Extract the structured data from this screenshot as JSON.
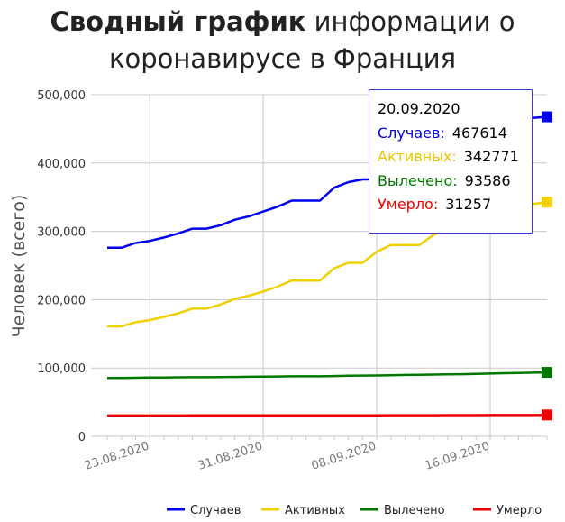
{
  "title": {
    "bold": "Сводный график",
    "line1_rest": " информации о",
    "line2": "коронавирусе в Франция"
  },
  "chart_data": {
    "type": "line",
    "ylabel": "Человек (всего)",
    "xlabel": "",
    "ylim": [
      0,
      500000
    ],
    "yticks": [
      "0",
      "100,000",
      "200,000",
      "300,000",
      "400,000",
      "500,000"
    ],
    "xticks": [
      "23.08.2020",
      "31.08.2020",
      "08.09.2020",
      "16.09.2020"
    ],
    "x": [
      "20.08.2020",
      "21.08.2020",
      "22.08.2020",
      "23.08.2020",
      "24.08.2020",
      "25.08.2020",
      "26.08.2020",
      "27.08.2020",
      "28.08.2020",
      "29.08.2020",
      "30.08.2020",
      "31.08.2020",
      "01.09.2020",
      "02.09.2020",
      "03.09.2020",
      "04.09.2020",
      "05.09.2020",
      "06.09.2020",
      "07.09.2020",
      "08.09.2020",
      "09.09.2020",
      "10.09.2020",
      "11.09.2020",
      "12.09.2020",
      "13.09.2020",
      "14.09.2020",
      "15.09.2020",
      "16.09.2020",
      "17.09.2020",
      "18.09.2020",
      "19.09.2020",
      "20.09.2020"
    ],
    "series": [
      {
        "name": "Случаев",
        "color": "#0000ee",
        "values": [
          276000,
          276000,
          283000,
          286000,
          291000,
          297000,
          304000,
          304000,
          309000,
          317000,
          322000,
          329000,
          336000,
          345000,
          345000,
          345000,
          364000,
          372000,
          376000,
          376000,
          380000,
          395000,
          405000,
          413000,
          420000,
          432000,
          440000,
          452000,
          458000,
          466000,
          466000,
          467614
        ]
      },
      {
        "name": "Активных",
        "color": "#f0d000",
        "values": [
          161000,
          161000,
          167000,
          170000,
          175000,
          180000,
          187000,
          187000,
          193000,
          201000,
          206000,
          212000,
          219000,
          228000,
          228000,
          228000,
          246000,
          254000,
          254000,
          270000,
          280000,
          280000,
          280000,
          295000,
          305000,
          314000,
          320000,
          328000,
          332000,
          340000,
          340000,
          342771
        ]
      },
      {
        "name": "Вылечено",
        "color": "#007800",
        "values": [
          85500,
          85500,
          85800,
          86000,
          86200,
          86400,
          86600,
          86600,
          86800,
          87000,
          87200,
          87400,
          87600,
          87900,
          87900,
          87900,
          88300,
          88600,
          88900,
          89100,
          89400,
          89800,
          90100,
          90400,
          90600,
          90900,
          91300,
          91800,
          92300,
          92800,
          93200,
          93586
        ]
      },
      {
        "name": "Умерло",
        "color": "#ee0000",
        "values": [
          30500,
          30500,
          30500,
          30500,
          30500,
          30500,
          30600,
          30600,
          30600,
          30600,
          30600,
          30700,
          30700,
          30700,
          30700,
          30700,
          30800,
          30800,
          30800,
          30800,
          30900,
          30900,
          30900,
          30900,
          31000,
          31000,
          31000,
          31100,
          31100,
          31200,
          31200,
          31257
        ]
      }
    ],
    "legend_placement": "bottom",
    "grid": true
  },
  "tooltip": {
    "date": "20.09.2020",
    "rows": [
      {
        "label": "Случаев:",
        "value": "467614",
        "color": "#0000ee"
      },
      {
        "label": "Активных:",
        "value": "342771",
        "color": "#f0d000"
      },
      {
        "label": "Вылечено:",
        "value": "93586",
        "color": "#007800"
      },
      {
        "label": "Умерло:",
        "value": "31257",
        "color": "#ee0000"
      }
    ]
  }
}
